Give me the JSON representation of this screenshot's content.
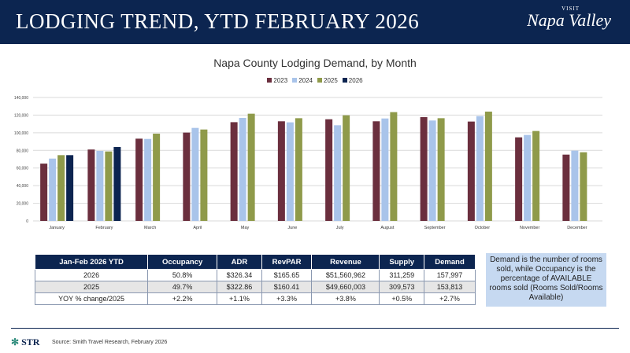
{
  "header": {
    "title": "LODGING TREND, YTD FEBRUARY 2026",
    "logo_small": "VISIT",
    "logo_text": "Napa Valley"
  },
  "colors": {
    "header": "#0c2550",
    "2023": "#6b2f3e",
    "2024": "#a9c4ea",
    "2025": "#8f9a4a",
    "2026": "#0c2450"
  },
  "chart_data": {
    "type": "bar",
    "title": "Napa County Lodging Demand, by Month",
    "categories": [
      "January",
      "February",
      "March",
      "April",
      "May",
      "June",
      "July",
      "August",
      "September",
      "October",
      "November",
      "December"
    ],
    "ylim": [
      0,
      140000
    ],
    "yticks": [
      "0",
      "20,000",
      "40,000",
      "60,000",
      "80,000",
      "100,000",
      "120,000",
      "140,000"
    ],
    "grid": true,
    "legend_position": "top",
    "series": [
      {
        "name": "2023",
        "color": "#6b2f3e",
        "values": [
          65000,
          81000,
          93300,
          100200,
          112000,
          113000,
          115300,
          113000,
          117700,
          112700,
          94800,
          75200
        ]
      },
      {
        "name": "2024",
        "color": "#a9c4ea",
        "values": [
          70700,
          79400,
          93000,
          105500,
          116800,
          111800,
          108500,
          116200,
          113900,
          118900,
          97500,
          79700
        ]
      },
      {
        "name": "2025",
        "color": "#8f9a4a",
        "values": [
          74600,
          78800,
          99000,
          103700,
          121600,
          116500,
          119800,
          123400,
          116500,
          124000,
          102000,
          77900
        ]
      },
      {
        "name": "2026",
        "color": "#0c2450",
        "values": [
          74600,
          83800,
          null,
          null,
          null,
          null,
          null,
          null,
          null,
          null,
          null,
          null
        ]
      }
    ]
  },
  "table": {
    "headers": [
      "Jan-Feb 2026 YTD",
      "Occupancy",
      "ADR",
      "RevPAR",
      "Revenue",
      "Supply",
      "Demand"
    ],
    "rows": [
      [
        "2026",
        "50.8%",
        "$326.34",
        "$165.65",
        "$51,560,962",
        "311,259",
        "157,997"
      ],
      [
        "2025",
        "49.7%",
        "$322.86",
        "$160.41",
        "$49,660,003",
        "309,573",
        "153,813"
      ],
      [
        "YOY % change/2025",
        "+2.2%",
        "+1.1%",
        "+3.3%",
        "+3.8%",
        "+0.5%",
        "+2.7%"
      ]
    ]
  },
  "note": "Demand is the number of rooms sold, while Occupancy is the percentage of AVAILABLE rooms sold (Rooms Sold/Rooms Available)",
  "footer": {
    "logo": "STR",
    "source": "Source: Smith Travel Research, February 2026"
  }
}
